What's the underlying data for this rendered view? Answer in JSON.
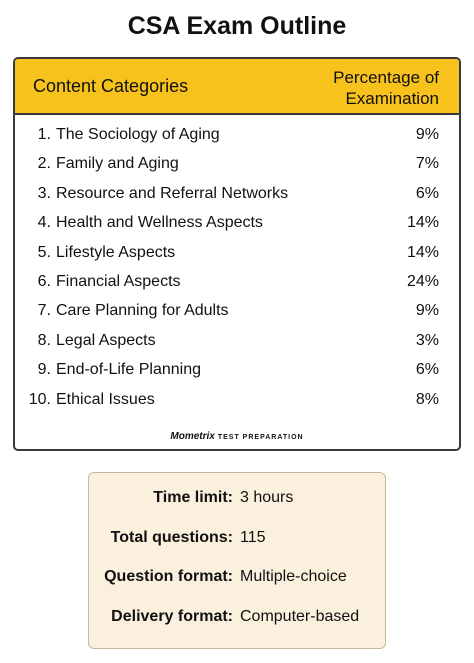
{
  "header": {
    "title": "CSA Exam Outline"
  },
  "table": {
    "columns": [
      "Content Categories",
      "Percentage of Examination"
    ],
    "rows": [
      [
        "1.",
        "The Sociology of Aging",
        "9%"
      ],
      [
        "2.",
        "Family and Aging",
        "7%"
      ],
      [
        "3.",
        "Resource and Referral Networks",
        "6%"
      ],
      [
        "4.",
        "Health and Wellness Aspects",
        "14%"
      ],
      [
        "5.",
        "Lifestyle Aspects",
        "14%"
      ],
      [
        "6.",
        "Financial Aspects",
        "24%"
      ],
      [
        "7.",
        "Care Planning for Adults",
        "9%"
      ],
      [
        "8.",
        "Legal Aspects",
        "3%"
      ],
      [
        "9.",
        "End-of-Life Planning",
        "6%"
      ],
      [
        "10.",
        "Ethical Issues",
        "8%"
      ]
    ]
  },
  "logo": {
    "brand": "Mometrix",
    "tagline": "TEST PREPARATION"
  },
  "info": [
    [
      "Time limit:",
      "3 hours"
    ],
    [
      "Total questions:",
      "115"
    ],
    [
      "Question format:",
      "Multiple-choice"
    ],
    [
      "Delivery format:",
      "Computer-based"
    ]
  ]
}
